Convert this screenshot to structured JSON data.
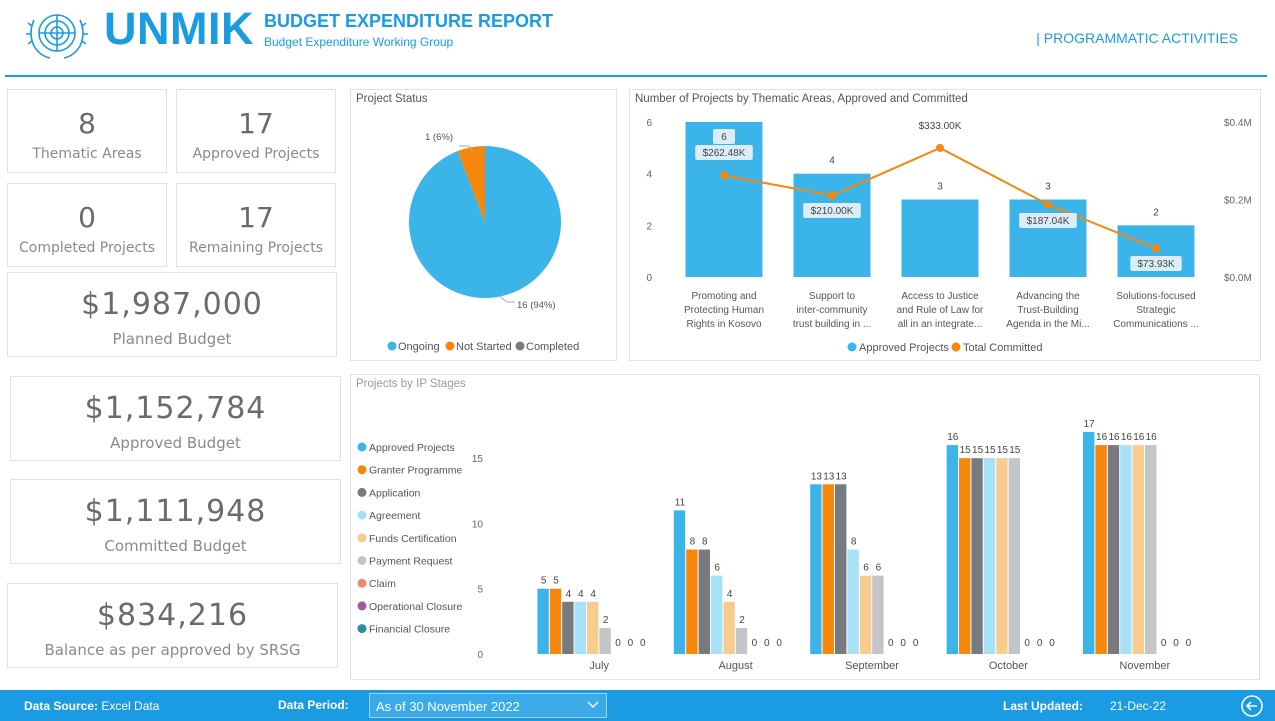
{
  "header": {
    "logo_text": "UNMIK",
    "title": "BUDGET EXPENDITURE REPORT",
    "subtitle": "Budget Expenditure Working Group",
    "section_label": "| PROGRAMMATIC ACTIVITIES"
  },
  "kpis": {
    "thematic": {
      "value": "8",
      "label": "Thematic Areas"
    },
    "approved": {
      "value": "17",
      "label": "Approved Projects"
    },
    "completed": {
      "value": "0",
      "label": "Completed Projects"
    },
    "remaining": {
      "value": "17",
      "label": "Remaining Projects"
    },
    "planned": {
      "value": "$1,987,000",
      "label": "Planned Budget"
    },
    "approved_budget": {
      "value": "$1,152,784",
      "label": "Approved Budget"
    },
    "committed": {
      "value": "$1,111,948",
      "label": "Committed Budget"
    },
    "balance": {
      "value": "$834,216",
      "label": "Balance as per approved by SRSG"
    }
  },
  "colors": {
    "blue": "#3bb5e9",
    "orange": "#f7860c",
    "gray": "#777b80",
    "lightblue": "#a6e1f7",
    "peach": "#f8cc8e",
    "lightgray": "#c4c5c6",
    "salmon": "#f2866e",
    "purple": "#a05ba0",
    "teal": "#2f8e9e"
  },
  "chart_data": [
    {
      "type": "pie",
      "title": "Project Status",
      "slices": [
        {
          "name": "Ongoing",
          "value": 16,
          "label": "16 (94%)"
        },
        {
          "name": "Not Started",
          "value": 1,
          "label": "1 (6%)"
        },
        {
          "name": "Completed",
          "value": 0,
          "label": ""
        }
      ],
      "legend": [
        "Ongoing",
        "Not Started",
        "Completed"
      ]
    },
    {
      "type": "bar",
      "title": "Number of Projects by Thematic Areas, Approved and Committed",
      "categories": [
        [
          "Promoting and",
          "Protecting Human",
          "Rights in Kosovo"
        ],
        [
          "Support to",
          "inter-community",
          "trust building in ..."
        ],
        [
          "Access to Justice",
          "and Rule of Law for",
          "all in an integrate..."
        ],
        [
          "Advancing the",
          "Trust-Building",
          "Agenda in the Mi..."
        ],
        [
          "Solutions-focused",
          "Strategic",
          "Communications ..."
        ]
      ],
      "series": [
        {
          "name": "Approved Projects",
          "values": [
            6,
            4,
            3,
            3,
            2
          ],
          "labels": [
            "6",
            "4",
            "3",
            "3",
            "2"
          ]
        },
        {
          "name": "Total Committed",
          "values": [
            262480,
            210000,
            333000,
            187040,
            73930
          ],
          "labels": [
            "$262.48K",
            "$210.00K",
            "$333.00K",
            "$187.04K",
            "$73.93K"
          ]
        }
      ],
      "ylim": [
        0,
        6
      ],
      "y_ticks": [
        "0",
        "2",
        "4",
        "6"
      ],
      "y2lim": [
        0,
        400000
      ],
      "y2_ticks": [
        "$0.0M",
        "$0.2M",
        "$0.4M"
      ],
      "legend": [
        "Approved Projects",
        "Total Committed"
      ]
    },
    {
      "type": "bar",
      "title": "Projects by IP Stages",
      "categories": [
        "July",
        "August",
        "September",
        "October",
        "November"
      ],
      "series": [
        {
          "name": "Approved Projects",
          "values": [
            5,
            11,
            13,
            16,
            17
          ]
        },
        {
          "name": "Granter Programme",
          "values": [
            5,
            8,
            13,
            15,
            16
          ]
        },
        {
          "name": "Application",
          "values": [
            4,
            8,
            13,
            15,
            16
          ]
        },
        {
          "name": "Agreement",
          "values": [
            4,
            6,
            8,
            15,
            16
          ]
        },
        {
          "name": "Funds Certification",
          "values": [
            4,
            4,
            6,
            15,
            16
          ]
        },
        {
          "name": "Payment Request",
          "values": [
            2,
            2,
            6,
            15,
            16
          ]
        },
        {
          "name": "Claim",
          "values": [
            0,
            0,
            0,
            0,
            0
          ]
        },
        {
          "name": "Operational Closure",
          "values": [
            0,
            0,
            0,
            0,
            0
          ]
        },
        {
          "name": "Financial Closure",
          "values": [
            0,
            0,
            0,
            0,
            0
          ]
        }
      ],
      "ylim": [
        0,
        18
      ],
      "y_ticks": [
        "0",
        "5",
        "10",
        "15"
      ]
    }
  ],
  "footer": {
    "source_label": "Data Source:",
    "source_value": "Excel Data",
    "period_label": "Data Period:",
    "period_value": "As of 30 November 2022",
    "updated_label": "Last Updated:",
    "updated_value": "21-Dec-22"
  }
}
